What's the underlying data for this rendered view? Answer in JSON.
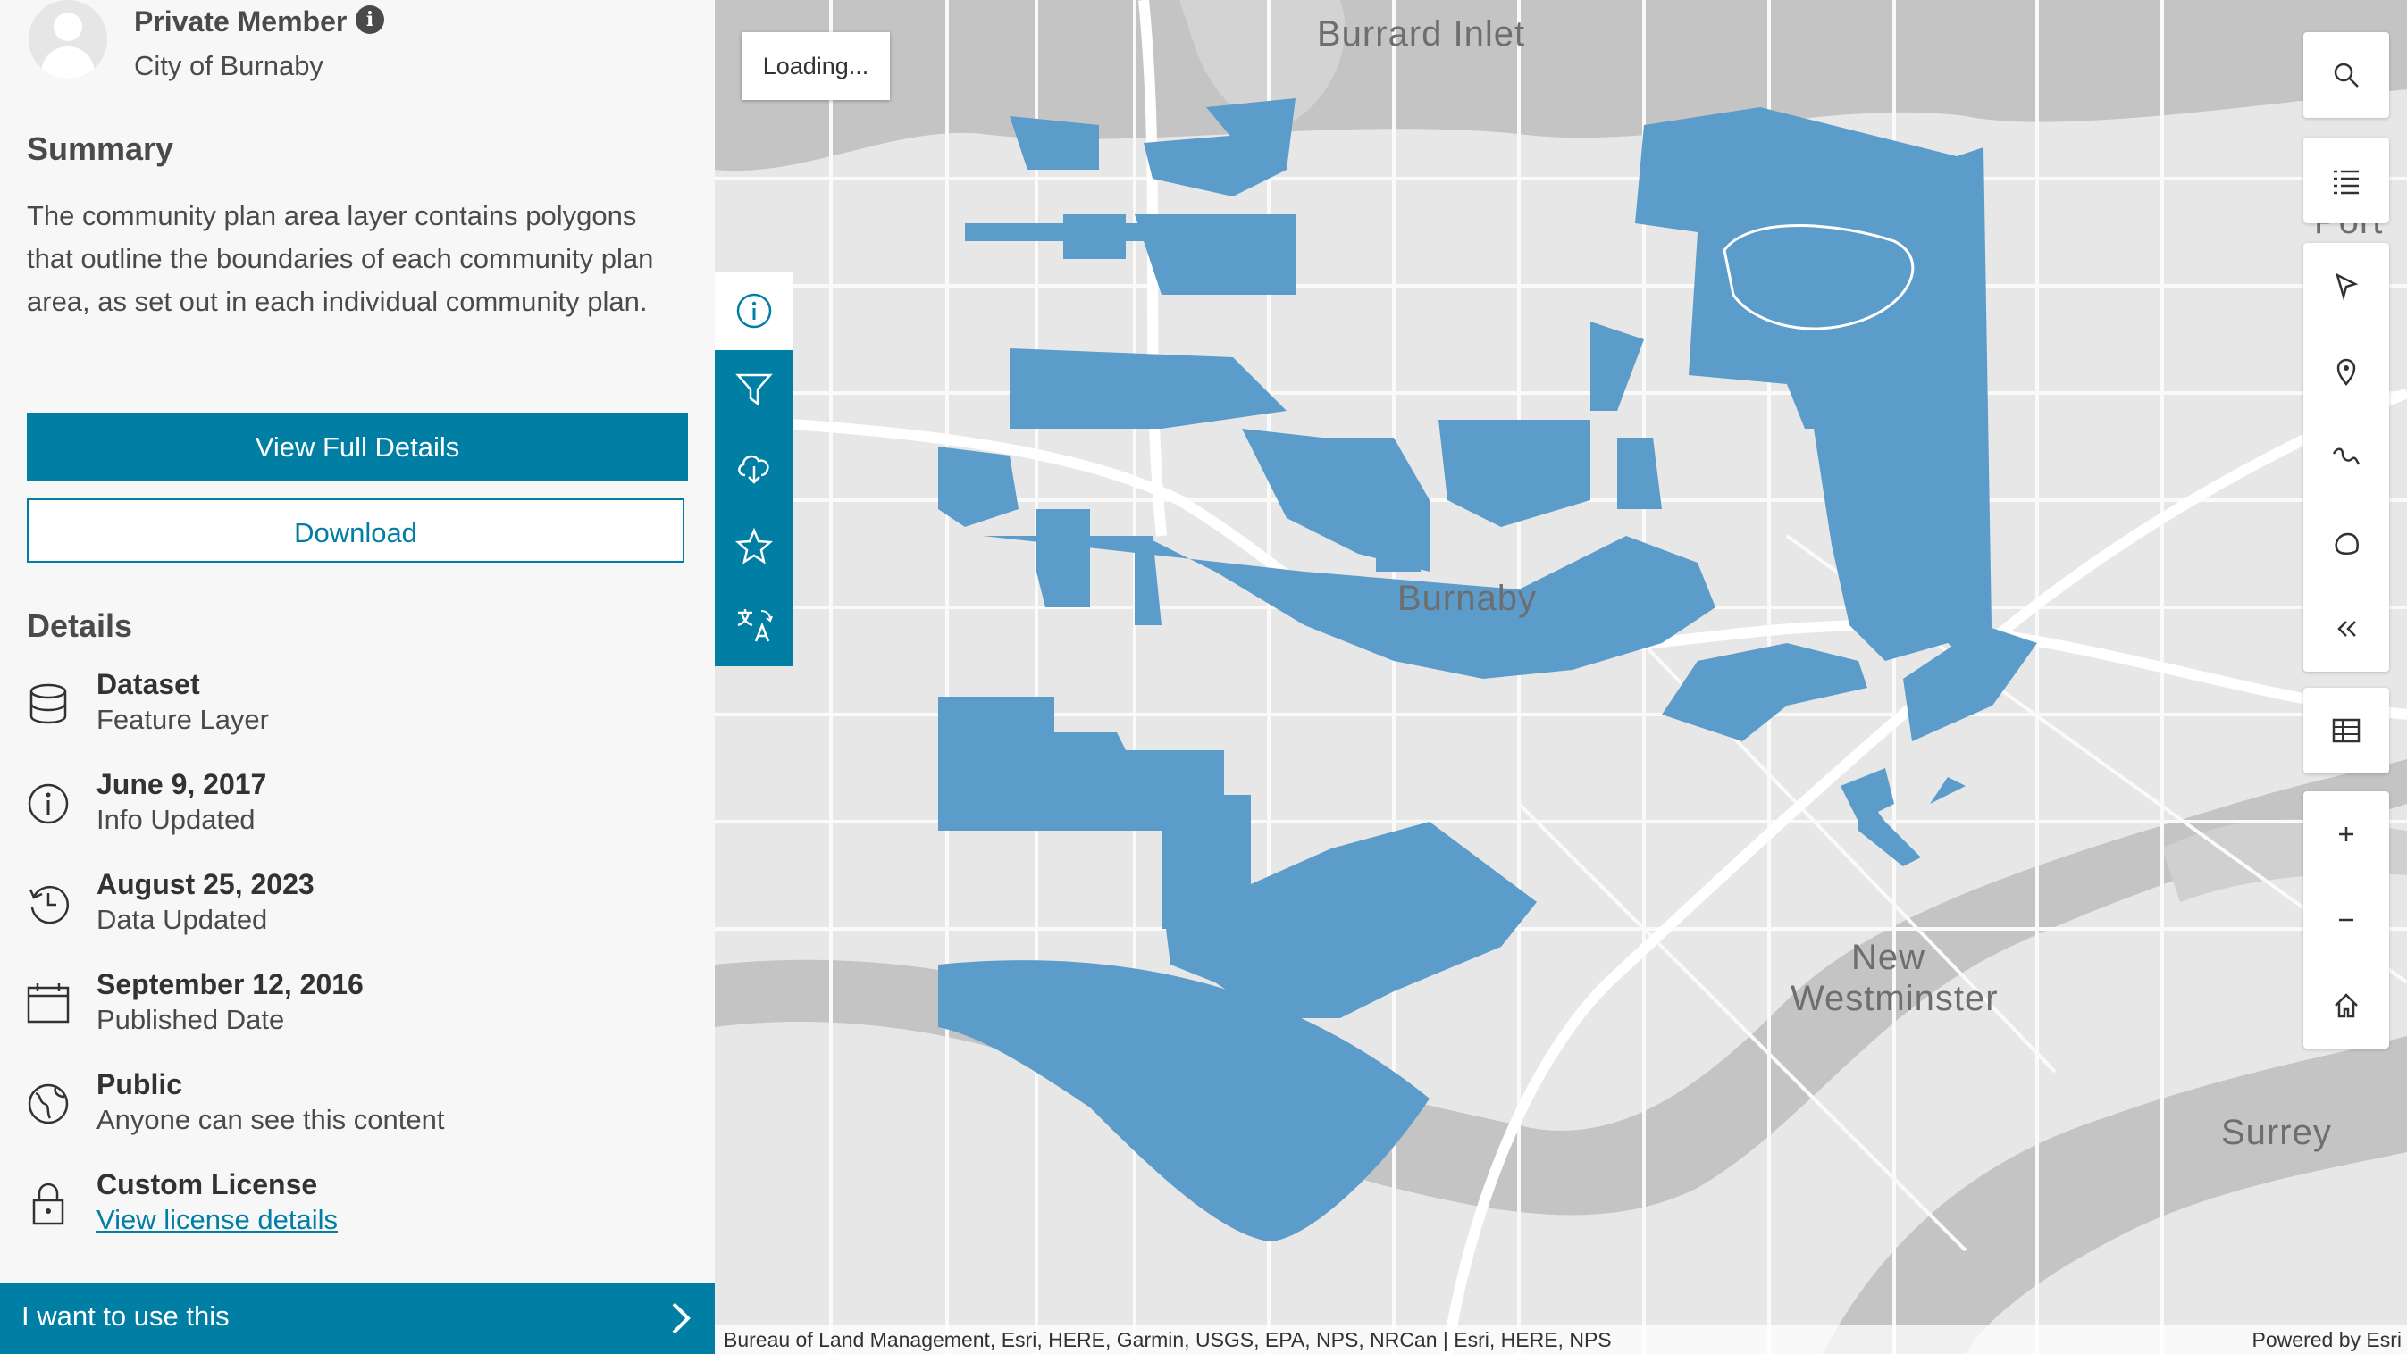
{
  "owner": {
    "name": "Private Member",
    "organization": "City of Burnaby"
  },
  "summary": {
    "heading": "Summary",
    "text": "The community plan area layer contains polygons that outline the boundaries of each community plan area, as set out in each individual community plan."
  },
  "actions": {
    "view_full_details": "View Full Details",
    "download": "Download"
  },
  "details": {
    "heading": "Details",
    "items": [
      {
        "title": "Dataset",
        "subtitle": "Feature Layer",
        "icon": "database-icon"
      },
      {
        "title": "June 9, 2017",
        "subtitle": "Info Updated",
        "icon": "info-icon"
      },
      {
        "title": "August 25, 2023",
        "subtitle": "Data Updated",
        "icon": "history-icon"
      },
      {
        "title": "September 12, 2016",
        "subtitle": "Published Date",
        "icon": "calendar-icon"
      },
      {
        "title": "Public",
        "subtitle": "Anyone can see this content",
        "icon": "globe-icon"
      },
      {
        "title": "Custom License",
        "link": "View license details",
        "icon": "lock-icon"
      }
    ]
  },
  "cta": {
    "label": "I want to use this"
  },
  "map": {
    "loading": "Loading...",
    "labels": {
      "inlet": "Burrard Inlet",
      "burnaby": "Burnaby",
      "new_westminster_1": "New",
      "new_westminster_2": "Westminster",
      "surrey": "Surrey",
      "port_moody": "Port M"
    },
    "attribution": "Bureau of Land Management, Esri, HERE, Garmin, USGS, EPA, NPS, NRCan | Esri, HERE, NPS",
    "powered_by": "Powered by Esri",
    "polygon_color": "#5b9ccb"
  },
  "side_tabs": [
    "info-icon",
    "filter-icon",
    "cloud-download-icon",
    "star-icon",
    "translate-icon"
  ],
  "map_tools": [
    "search-icon",
    "legend-icon",
    "select-icon",
    "point-icon",
    "line-icon",
    "polygon-icon",
    "collapse-icon",
    "table-icon",
    "zoom-in-icon",
    "zoom-out-icon",
    "home-icon"
  ],
  "colors": {
    "brand": "#007ea4",
    "sidebar_bg": "#f7f7f7",
    "map_bg": "#e7e7e7"
  }
}
